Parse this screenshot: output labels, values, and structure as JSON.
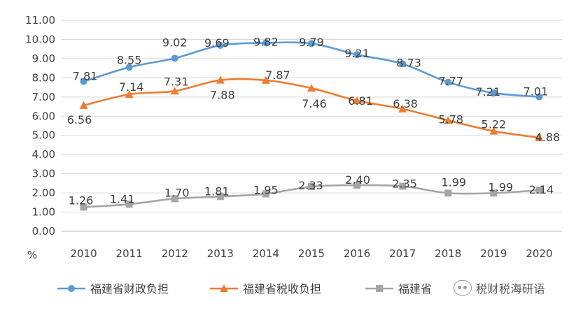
{
  "chart_data": {
    "type": "line",
    "unit_label": "%",
    "categories": [
      "2010",
      "2011",
      "2012",
      "2013",
      "2014",
      "2015",
      "2016",
      "2017",
      "2018",
      "2019",
      "2020"
    ],
    "ylim": [
      0,
      11
    ],
    "ytick_step": 1,
    "ytick_labels": [
      "0.00",
      "1.00",
      "2.00",
      "3.00",
      "4.00",
      "5.00",
      "6.00",
      "7.00",
      "8.00",
      "9.00",
      "10.00",
      "11.00"
    ],
    "grid": "horizontal",
    "legend_position": "bottom",
    "series": [
      {
        "name": "福建省财政负担",
        "color": "#5B9BD5",
        "marker": "circle",
        "values": [
          7.81,
          8.55,
          9.02,
          9.69,
          9.82,
          9.79,
          9.21,
          8.73,
          7.77,
          7.21,
          7.01
        ],
        "labels": [
          "7.81",
          "8.55",
          "9.02",
          "9.69",
          "9.82",
          "9.79",
          "9.21",
          "8.73",
          "7.77",
          "7.21",
          "7.01"
        ]
      },
      {
        "name": "福建省税收负担",
        "color": "#ED7D31",
        "marker": "triangle",
        "values": [
          6.56,
          7.14,
          7.31,
          7.88,
          7.87,
          7.46,
          6.81,
          6.38,
          5.78,
          5.22,
          4.88
        ],
        "labels": [
          "6.56",
          "7.14",
          "7.31",
          "7.88",
          "7.87",
          "7.46",
          "6.81",
          "6.38",
          "5.78",
          "5.22",
          "4.88"
        ]
      },
      {
        "name": "福建省",
        "color": "#A5A5A5",
        "marker": "square",
        "values": [
          1.26,
          1.41,
          1.7,
          1.81,
          1.95,
          2.33,
          2.4,
          2.35,
          1.99,
          1.99,
          2.14
        ],
        "labels": [
          "1.26",
          "1.41",
          "1.70",
          "1.81",
          "1.95",
          "2.33",
          "2.40",
          "2.35",
          "1.99",
          "1.99",
          "2.14"
        ]
      }
    ]
  },
  "watermark": {
    "text": "税财税海研语",
    "icon": "wechat-icon"
  }
}
